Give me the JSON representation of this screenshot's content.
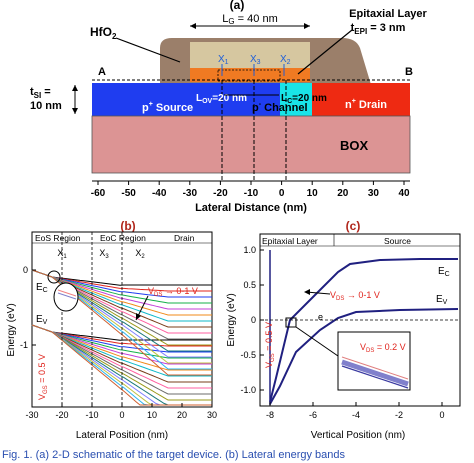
{
  "panel_a": {
    "label": "(a)",
    "lg_label": "L",
    "lg_sub": "G",
    "lg_value": " = 40 nm",
    "hfo2": "HfO",
    "hfo2_sub": "2",
    "epi_title": "Epitaxial Layer",
    "tepi_label": "t",
    "tepi_sub": "EPI",
    "tepi_value": " = 3 nm",
    "tsi_label": "t",
    "tsi_sub": "SI",
    "tsi_value": " =",
    "tsi_value2": "10 nm",
    "a_marker": "A",
    "b_marker": "B",
    "x1": "X",
    "x1_sub": "1",
    "x2": "X",
    "x2_sub": "2",
    "x3": "X",
    "x3_sub": "3",
    "lov_label": "L",
    "lov_sub": "OV",
    "lov_value": "=20 nm",
    "lc_label": "L",
    "lc_sub": "C",
    "lc_value": "=20 nm",
    "source_label": "p",
    "source_sup": "+",
    "source_text": " Source",
    "channel_label": "p",
    "channel_sup": "-",
    "channel_text": " Channel",
    "drain_label": "n",
    "drain_sup": "+",
    "drain_text": " Drain",
    "box_label": "BOX",
    "xaxis_ticks": [
      "-60",
      "-50",
      "-40",
      "-30",
      "-20",
      "-10",
      "0",
      "10",
      "20",
      "30",
      "40"
    ],
    "xlabel": "Lateral Distance (nm)",
    "colors": {
      "gate": "#d6c7a0",
      "gate_oxide": "#9b7f6a",
      "source": "#1f3df0",
      "channel": "#19e4e8",
      "drain": "#ee2a12",
      "box": "#dc9494",
      "epi": "#f07a22"
    }
  },
  "panel_b": {
    "label": "(b)",
    "region_eos": "EoS Region",
    "region_eoc": "EoC Region",
    "region_drain": "Drain",
    "x1": "X",
    "x1_sub": "1",
    "x3": "X",
    "x3_sub": "3",
    "x2": "X",
    "x2_sub": "2",
    "ec": "E",
    "ec_sub": "C",
    "ev": "E",
    "ev_sub": "V",
    "vds": "V",
    "vds_sub": "DS",
    "vds_value": " → 0-1 V",
    "vgs": "V",
    "vgs_sub": "GS",
    "vgs_value": " = 0.5 V",
    "ylabel": "Energy (eV)",
    "xlabel": "Lateral Position (nm)",
    "xticks": [
      "-30",
      "-20",
      "-10",
      "0",
      "10",
      "20",
      "30"
    ],
    "yticks": [
      "0",
      "-1"
    ]
  },
  "panel_c": {
    "label": "(c)",
    "epi_title": "Epitaxial Layer",
    "source_title": "Source",
    "ec": "E",
    "ec_sub": "C",
    "ev": "E",
    "ev_sub": "V",
    "vds": "V",
    "vds_sub": "DS",
    "vds_value": " → 0-1 V",
    "inset_v": "V",
    "inset_sub": "DS",
    "inset_value": " = 0.2 V",
    "vgs": "V",
    "vgs_sub": "GS",
    "vgs_value": " = 0.5 V",
    "e_minus": "e",
    "ylabel": "Energy (eV)",
    "xlabel": "Vertical Position (nm)",
    "xticks": [
      "-8",
      "-6",
      "-4",
      "-2",
      "0"
    ],
    "yticks": [
      "1.0",
      "0.5",
      "0",
      "-0.5",
      "-1.0"
    ]
  },
  "caption": "Fig. 1.  (a) 2-D schematic of the target device. (b) Lateral energy bands"
}
